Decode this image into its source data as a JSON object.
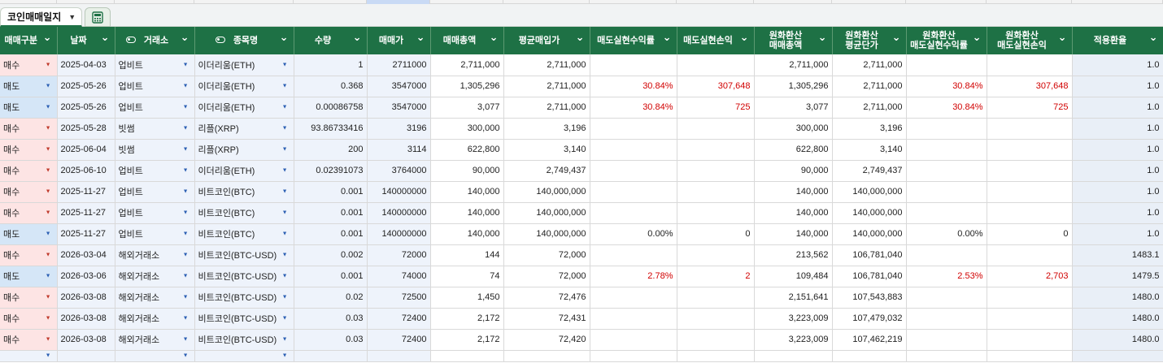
{
  "app": {
    "sheet_tab_label": "코인매매일지",
    "tab_menu_icon": "chevron-down-icon",
    "calc_icon": "calculator-icon"
  },
  "colors": {
    "header_bg": "#1e7145",
    "buy_bg": "#fde4e4",
    "sell_bg": "#d5e6f7",
    "input_bg": "#eef3fb",
    "negative_red": "#d10000"
  },
  "columns": [
    {
      "key": "type",
      "label": "매매구분"
    },
    {
      "key": "date",
      "label": "날짜"
    },
    {
      "key": "exchange",
      "label": "거래소",
      "icon": "tag-icon"
    },
    {
      "key": "coin",
      "label": "종목명",
      "icon": "tag-icon"
    },
    {
      "key": "qty",
      "label": "수량"
    },
    {
      "key": "price",
      "label": "매매가"
    },
    {
      "key": "total",
      "label": "매매총액"
    },
    {
      "key": "avg",
      "label": "평균매입가"
    },
    {
      "key": "profit_rate",
      "label": "매도실현수익률"
    },
    {
      "key": "profit",
      "label": "매도실현손익"
    },
    {
      "key": "krw_total",
      "label": "원화환산\n매매총액"
    },
    {
      "key": "krw_avg",
      "label": "원화환산\n평균단가"
    },
    {
      "key": "krw_profit_rate",
      "label": "원화환산\n매도실현수익률"
    },
    {
      "key": "krw_profit",
      "label": "원화환산\n매도실현손익"
    },
    {
      "key": "rate",
      "label": "적용환율"
    }
  ],
  "rows": [
    {
      "type": "매수",
      "date": "2025-04-03",
      "exchange": "업비트",
      "coin": "이더리움(ETH)",
      "qty": "1",
      "price": "2711000",
      "total": "2,711,000",
      "avg": "2,711,000",
      "profit_rate": "",
      "profit": "",
      "krw_total": "2,711,000",
      "krw_avg": "2,711,000",
      "krw_profit_rate": "",
      "krw_profit": "",
      "rate": "1.0"
    },
    {
      "type": "매도",
      "date": "2025-05-26",
      "exchange": "업비트",
      "coin": "이더리움(ETH)",
      "qty": "0.368",
      "price": "3547000",
      "total": "1,305,296",
      "avg": "2,711,000",
      "profit_rate": "30.84%",
      "profit": "307,648",
      "krw_total": "1,305,296",
      "krw_avg": "2,711,000",
      "krw_profit_rate": "30.84%",
      "krw_profit": "307,648",
      "rate": "1.0"
    },
    {
      "type": "매도",
      "date": "2025-05-26",
      "exchange": "업비트",
      "coin": "이더리움(ETH)",
      "qty": "0.00086758",
      "price": "3547000",
      "total": "3,077",
      "avg": "2,711,000",
      "profit_rate": "30.84%",
      "profit": "725",
      "krw_total": "3,077",
      "krw_avg": "2,711,000",
      "krw_profit_rate": "30.84%",
      "krw_profit": "725",
      "rate": "1.0"
    },
    {
      "type": "매수",
      "date": "2025-05-28",
      "exchange": "빗썸",
      "coin": "리플(XRP)",
      "qty": "93.86733416",
      "price": "3196",
      "total": "300,000",
      "avg": "3,196",
      "profit_rate": "",
      "profit": "",
      "krw_total": "300,000",
      "krw_avg": "3,196",
      "krw_profit_rate": "",
      "krw_profit": "",
      "rate": "1.0"
    },
    {
      "type": "매수",
      "date": "2025-06-04",
      "exchange": "빗썸",
      "coin": "리플(XRP)",
      "qty": "200",
      "price": "3114",
      "total": "622,800",
      "avg": "3,140",
      "profit_rate": "",
      "profit": "",
      "krw_total": "622,800",
      "krw_avg": "3,140",
      "krw_profit_rate": "",
      "krw_profit": "",
      "rate": "1.0"
    },
    {
      "type": "매수",
      "date": "2025-06-10",
      "exchange": "업비트",
      "coin": "이더리움(ETH)",
      "qty": "0.02391073",
      "price": "3764000",
      "total": "90,000",
      "avg": "2,749,437",
      "profit_rate": "",
      "profit": "",
      "krw_total": "90,000",
      "krw_avg": "2,749,437",
      "krw_profit_rate": "",
      "krw_profit": "",
      "rate": "1.0"
    },
    {
      "type": "매수",
      "date": "2025-11-27",
      "exchange": "업비트",
      "coin": "비트코인(BTC)",
      "qty": "0.001",
      "price": "140000000",
      "total": "140,000",
      "avg": "140,000,000",
      "profit_rate": "",
      "profit": "",
      "krw_total": "140,000",
      "krw_avg": "140,000,000",
      "krw_profit_rate": "",
      "krw_profit": "",
      "rate": "1.0"
    },
    {
      "type": "매수",
      "date": "2025-11-27",
      "exchange": "업비트",
      "coin": "비트코인(BTC)",
      "qty": "0.001",
      "price": "140000000",
      "total": "140,000",
      "avg": "140,000,000",
      "profit_rate": "",
      "profit": "",
      "krw_total": "140,000",
      "krw_avg": "140,000,000",
      "krw_profit_rate": "",
      "krw_profit": "",
      "rate": "1.0"
    },
    {
      "type": "매도",
      "date": "2025-11-27",
      "exchange": "업비트",
      "coin": "비트코인(BTC)",
      "qty": "0.001",
      "price": "140000000",
      "total": "140,000",
      "avg": "140,000,000",
      "profit_rate": "0.00%",
      "profit": "0",
      "krw_total": "140,000",
      "krw_avg": "140,000,000",
      "krw_profit_rate": "0.00%",
      "krw_profit": "0",
      "rate": "1.0"
    },
    {
      "type": "매수",
      "date": "2026-03-04",
      "exchange": "해외거래소",
      "coin": "비트코인(BTC-USD)",
      "qty": "0.002",
      "price": "72000",
      "total": "144",
      "avg": "72,000",
      "profit_rate": "",
      "profit": "",
      "krw_total": "213,562",
      "krw_avg": "106,781,040",
      "krw_profit_rate": "",
      "krw_profit": "",
      "rate": "1483.1"
    },
    {
      "type": "매도",
      "date": "2026-03-06",
      "exchange": "해외거래소",
      "coin": "비트코인(BTC-USD)",
      "qty": "0.001",
      "price": "74000",
      "total": "74",
      "avg": "72,000",
      "profit_rate": "2.78%",
      "profit": "2",
      "krw_total": "109,484",
      "krw_avg": "106,781,040",
      "krw_profit_rate": "2.53%",
      "krw_profit": "2,703",
      "rate": "1479.5"
    },
    {
      "type": "매수",
      "date": "2026-03-08",
      "exchange": "해외거래소",
      "coin": "비트코인(BTC-USD)",
      "qty": "0.02",
      "price": "72500",
      "total": "1,450",
      "avg": "72,476",
      "profit_rate": "",
      "profit": "",
      "krw_total": "2,151,641",
      "krw_avg": "107,543,883",
      "krw_profit_rate": "",
      "krw_profit": "",
      "rate": "1480.0"
    },
    {
      "type": "매수",
      "date": "2026-03-08",
      "exchange": "해외거래소",
      "coin": "비트코인(BTC-USD)",
      "qty": "0.03",
      "price": "72400",
      "total": "2,172",
      "avg": "72,431",
      "profit_rate": "",
      "profit": "",
      "krw_total": "3,223,009",
      "krw_avg": "107,479,032",
      "krw_profit_rate": "",
      "krw_profit": "",
      "rate": "1480.0"
    },
    {
      "type": "매수",
      "date": "2026-03-08",
      "exchange": "해외거래소",
      "coin": "비트코인(BTC-USD)",
      "qty": "0.03",
      "price": "72400",
      "total": "2,172",
      "avg": "72,420",
      "profit_rate": "",
      "profit": "",
      "krw_total": "3,223,009",
      "krw_avg": "107,462,219",
      "krw_profit_rate": "",
      "krw_profit": "",
      "rate": "1480.0"
    }
  ]
}
